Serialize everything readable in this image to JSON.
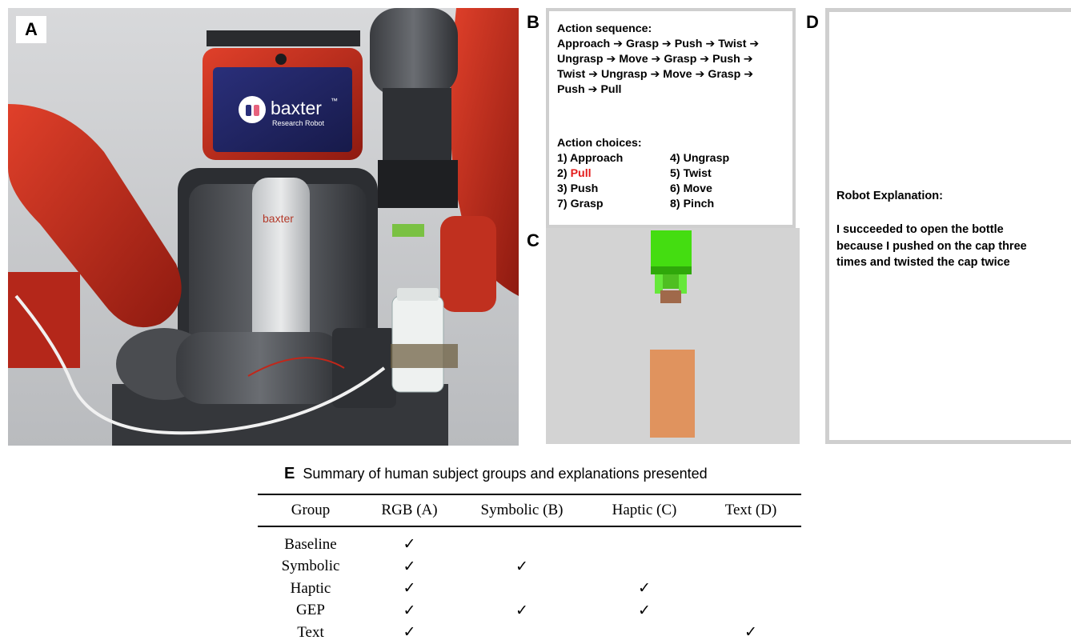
{
  "panels": {
    "a": {
      "letter": "A",
      "screen_brand": "baxter",
      "screen_tm": "™",
      "screen_sub": "Research Robot",
      "torso_brand": "baxter"
    },
    "b": {
      "letter": "B",
      "sequence_title": "Action sequence:",
      "sequence_lines": [
        "Approach ➔ Grasp ➔ Push ➔ Twist ➔",
        "Ungrasp ➔ Move ➔ Grasp ➔ Push ➔",
        "Twist ➔ Ungrasp ➔ Move ➔ Grasp ➔",
        "Push ➔ Pull"
      ],
      "choices_title": "Action choices:",
      "choices": [
        {
          "num": "1)",
          "label": "Approach",
          "highlight": false
        },
        {
          "num": "4)",
          "label": "Ungrasp",
          "highlight": false
        },
        {
          "num": "2)",
          "label": "Pull",
          "highlight": true
        },
        {
          "num": "5)",
          "label": "Twist",
          "highlight": false
        },
        {
          "num": "3)",
          "label": "Push",
          "highlight": false
        },
        {
          "num": "6)",
          "label": "Move",
          "highlight": false
        },
        {
          "num": "7)",
          "label": "Grasp",
          "highlight": false
        },
        {
          "num": "8)",
          "label": "Pinch",
          "highlight": false
        }
      ],
      "highlight_color": "#e31a1a"
    },
    "c": {
      "letter": "C",
      "background": "#d3d3d3",
      "gripper_color": "#44dd11",
      "cap_color": "#a0694a",
      "bottle_color": "#e0935e"
    },
    "d": {
      "letter": "D",
      "title": "Robot Explanation:",
      "lines": [
        "I succeeded to open the bottle",
        "because I pushed on the cap three",
        "times and twisted the cap twice"
      ]
    }
  },
  "table": {
    "letter": "E",
    "caption": "Summary of human subject groups and explanations presented",
    "headers": [
      "Group",
      "RGB (A)",
      "Symbolic (B)",
      "Haptic (C)",
      "Text (D)"
    ],
    "check_glyph": "✓",
    "rows": [
      {
        "group": "Baseline",
        "checks": [
          true,
          false,
          false,
          false
        ]
      },
      {
        "group": "Symbolic",
        "checks": [
          true,
          true,
          false,
          false
        ]
      },
      {
        "group": "Haptic",
        "checks": [
          true,
          false,
          true,
          false
        ]
      },
      {
        "group": "GEP",
        "checks": [
          true,
          true,
          true,
          false
        ]
      },
      {
        "group": "Text",
        "checks": [
          true,
          false,
          false,
          true
        ]
      }
    ]
  }
}
